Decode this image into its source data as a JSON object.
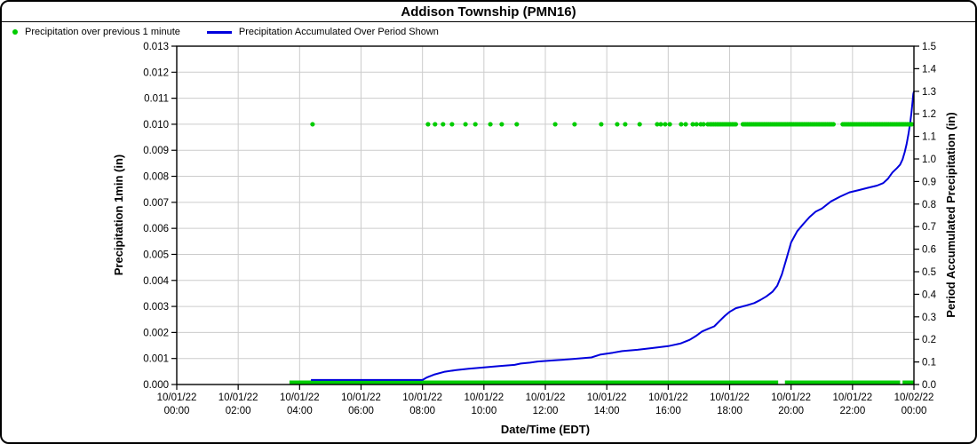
{
  "chart_data": {
    "type": "line",
    "title": "Addison Township (PMN16)",
    "colors": {
      "dots": "#00CC00",
      "line": "#0000DD",
      "grid": "#CCCCCC",
      "axis": "#000000",
      "text": "#000000"
    },
    "x_axis": {
      "label": "Date/Time (EDT)",
      "range_hours": [
        0,
        24
      ],
      "tick_step_hours": 2,
      "tick_labels": [
        [
          "10/01/22",
          "00:00"
        ],
        [
          "10/01/22",
          "02:00"
        ],
        [
          "10/01/22",
          "04:00"
        ],
        [
          "10/01/22",
          "06:00"
        ],
        [
          "10/01/22",
          "08:00"
        ],
        [
          "10/01/22",
          "10:00"
        ],
        [
          "10/01/22",
          "12:00"
        ],
        [
          "10/01/22",
          "14:00"
        ],
        [
          "10/01/22",
          "16:00"
        ],
        [
          "10/01/22",
          "18:00"
        ],
        [
          "10/01/22",
          "20:00"
        ],
        [
          "10/01/22",
          "22:00"
        ],
        [
          "10/02/22",
          "00:00"
        ]
      ]
    },
    "y_left": {
      "label": "Precipitation 1min (in)",
      "min": 0,
      "max": 0.013,
      "step": 0.001,
      "decimals": 3
    },
    "y_right": {
      "label": "Period Accumulated Precipitation (in)",
      "min": 0,
      "max": 1.5,
      "step": 0.1,
      "decimals": 1
    },
    "series": {
      "precip_1min": {
        "name": "Precipitation over previous 1 minute",
        "marker": "dot",
        "dot_value_in": 0.01,
        "dot_hours": [
          4.42,
          8.18,
          8.41,
          8.67,
          8.96,
          9.4,
          9.72,
          10.21,
          10.58,
          11.07,
          12.32,
          12.95,
          13.82,
          14.34,
          14.6,
          15.07,
          15.64,
          15.76,
          15.9,
          16.05,
          16.42,
          16.57,
          16.8,
          16.92,
          17.06,
          17.15,
          17.29
        ],
        "dense_dot_runs_hours": [
          [
            17.36,
            18.25,
            0.06
          ],
          [
            18.43,
            21.4,
            0.05
          ],
          [
            21.68,
            23.95,
            0.05
          ]
        ],
        "zero_band_runs_hours": [
          [
            3.67,
            19.58
          ],
          [
            19.8,
            23.55
          ],
          [
            23.63,
            24.0
          ]
        ]
      },
      "accumulated": {
        "name": "Precipitation Accumulated Over Period Shown",
        "marker": "line",
        "points_hour_inch": [
          [
            4.37,
            0.02
          ],
          [
            8.0,
            0.02
          ],
          [
            8.15,
            0.032
          ],
          [
            8.4,
            0.045
          ],
          [
            8.7,
            0.056
          ],
          [
            9.1,
            0.064
          ],
          [
            9.5,
            0.07
          ],
          [
            10.0,
            0.076
          ],
          [
            10.5,
            0.082
          ],
          [
            11.0,
            0.087
          ],
          [
            11.2,
            0.093
          ],
          [
            11.5,
            0.097
          ],
          [
            11.75,
            0.102
          ],
          [
            12.3,
            0.107
          ],
          [
            12.9,
            0.113
          ],
          [
            13.5,
            0.12
          ],
          [
            13.8,
            0.133
          ],
          [
            14.2,
            0.141
          ],
          [
            14.5,
            0.148
          ],
          [
            15.0,
            0.154
          ],
          [
            15.5,
            0.162
          ],
          [
            16.0,
            0.17
          ],
          [
            16.4,
            0.182
          ],
          [
            16.7,
            0.198
          ],
          [
            16.9,
            0.215
          ],
          [
            17.1,
            0.235
          ],
          [
            17.3,
            0.247
          ],
          [
            17.5,
            0.258
          ],
          [
            17.7,
            0.285
          ],
          [
            17.85,
            0.305
          ],
          [
            18.0,
            0.322
          ],
          [
            18.2,
            0.338
          ],
          [
            18.5,
            0.349
          ],
          [
            18.8,
            0.361
          ],
          [
            19.0,
            0.375
          ],
          [
            19.2,
            0.391
          ],
          [
            19.4,
            0.412
          ],
          [
            19.55,
            0.438
          ],
          [
            19.7,
            0.488
          ],
          [
            19.85,
            0.558
          ],
          [
            20.0,
            0.63
          ],
          [
            20.2,
            0.68
          ],
          [
            20.4,
            0.712
          ],
          [
            20.6,
            0.742
          ],
          [
            20.8,
            0.766
          ],
          [
            21.0,
            0.78
          ],
          [
            21.3,
            0.812
          ],
          [
            21.6,
            0.833
          ],
          [
            21.9,
            0.852
          ],
          [
            22.2,
            0.862
          ],
          [
            22.5,
            0.872
          ],
          [
            22.8,
            0.882
          ],
          [
            23.0,
            0.893
          ],
          [
            23.15,
            0.912
          ],
          [
            23.3,
            0.94
          ],
          [
            23.45,
            0.96
          ],
          [
            23.55,
            0.975
          ],
          [
            23.63,
            0.998
          ],
          [
            23.7,
            1.03
          ],
          [
            23.76,
            1.065
          ],
          [
            23.82,
            1.11
          ],
          [
            23.88,
            1.16
          ],
          [
            23.92,
            1.205
          ],
          [
            23.95,
            1.248
          ],
          [
            23.98,
            1.288
          ],
          [
            24.0,
            1.3
          ]
        ]
      }
    }
  }
}
